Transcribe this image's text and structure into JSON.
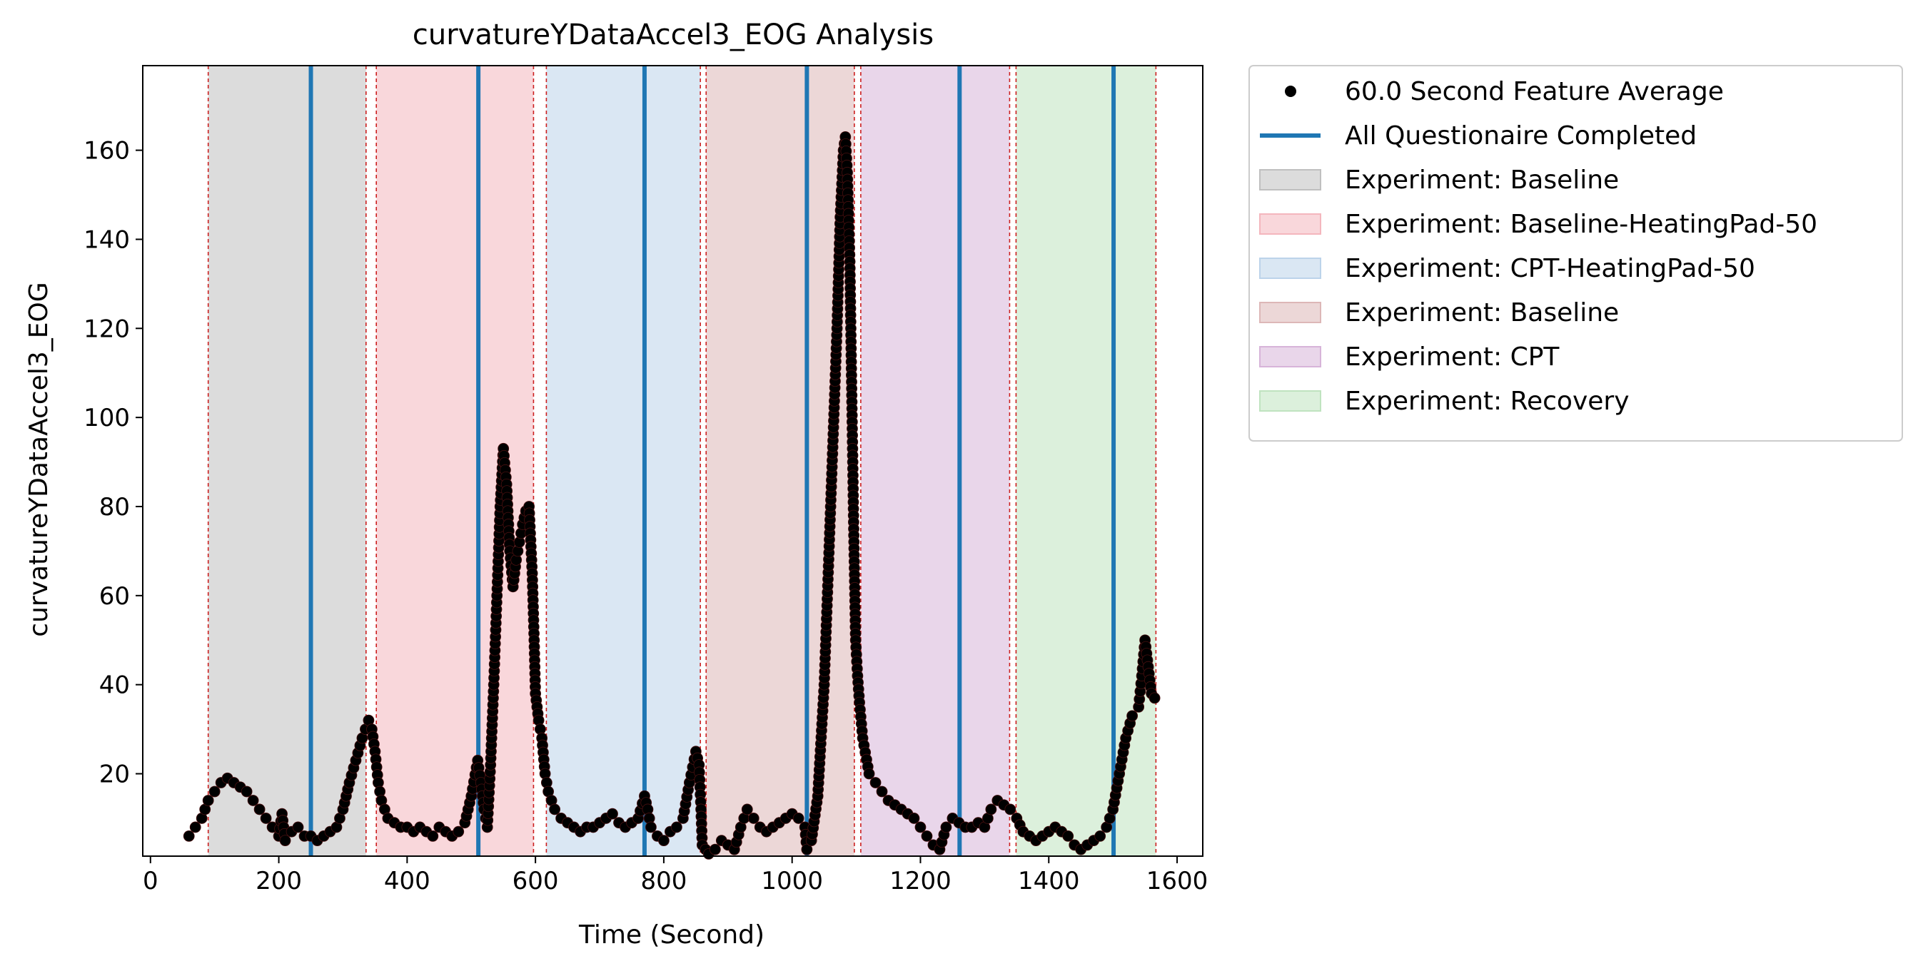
{
  "chart_data": {
    "type": "scatter",
    "title": "curvatureYDataAccel3_EOG Analysis",
    "xlabel": "Time (Second)",
    "ylabel": "curvatureYDataAccel3_EOG",
    "xlim": [
      -12,
      1640
    ],
    "ylim": [
      1.5,
      179
    ],
    "xticks": [
      0,
      200,
      400,
      600,
      800,
      1000,
      1200,
      1400,
      1600
    ],
    "yticks": [
      20,
      40,
      60,
      80,
      100,
      120,
      140,
      160
    ],
    "grid": false,
    "legend_position": "outside-top-right",
    "legend": [
      {
        "label": "60.0 Second Feature Average",
        "kind": "marker",
        "color": "#000000"
      },
      {
        "label": "All Questionaire Completed",
        "kind": "line",
        "color": "#1f77b4"
      },
      {
        "label": "Experiment: Baseline",
        "kind": "patch",
        "color": "#bfbfbf"
      },
      {
        "label": "Experiment: Baseline-HeatingPad-50",
        "kind": "patch",
        "color": "#f4b6bd"
      },
      {
        "label": "Experiment: CPT-HeatingPad-50",
        "kind": "patch",
        "color": "#bcd3ea"
      },
      {
        "label": "Experiment: Baseline",
        "kind": "patch",
        "color": "#ddb7b7"
      },
      {
        "label": "Experiment: CPT",
        "kind": "patch",
        "color": "#d7b4d9"
      },
      {
        "label": "Experiment: Recovery",
        "kind": "patch",
        "color": "#bfe3bf"
      }
    ],
    "experiment_regions": [
      {
        "name": "Experiment: Baseline",
        "start": 90,
        "end": 336,
        "color": "#bfbfbf"
      },
      {
        "name": "Experiment: Baseline-HeatingPad-50",
        "start": 352,
        "end": 597,
        "color": "#f4b6bd"
      },
      {
        "name": "Experiment: CPT-HeatingPad-50",
        "start": 617,
        "end": 857,
        "color": "#bcd3ea"
      },
      {
        "name": "Experiment: Baseline",
        "start": 866,
        "end": 1097,
        "color": "#ddb7b7"
      },
      {
        "name": "Experiment: CPT",
        "start": 1107,
        "end": 1339,
        "color": "#d7b4d9"
      },
      {
        "name": "Experiment: Recovery",
        "start": 1349,
        "end": 1567,
        "color": "#bfe3bf"
      }
    ],
    "questionnaire_completed_x": [
      250,
      511,
      770,
      1023,
      1261,
      1501
    ],
    "series": [
      {
        "name": "60.0 Second Feature Average",
        "color": "#000000",
        "points": [
          [
            60,
            6
          ],
          [
            70,
            8
          ],
          [
            80,
            10
          ],
          [
            90,
            14
          ],
          [
            100,
            16
          ],
          [
            110,
            18
          ],
          [
            120,
            19
          ],
          [
            130,
            18
          ],
          [
            140,
            17
          ],
          [
            150,
            16
          ],
          [
            160,
            14
          ],
          [
            170,
            12
          ],
          [
            180,
            10
          ],
          [
            190,
            8
          ],
          [
            200,
            6
          ],
          [
            205,
            11
          ],
          [
            210,
            5
          ],
          [
            220,
            7
          ],
          [
            230,
            8
          ],
          [
            240,
            6
          ],
          [
            250,
            6
          ],
          [
            260,
            5
          ],
          [
            270,
            6
          ],
          [
            280,
            7
          ],
          [
            290,
            8
          ],
          [
            300,
            12
          ],
          [
            310,
            18
          ],
          [
            320,
            23
          ],
          [
            330,
            28
          ],
          [
            340,
            32
          ],
          [
            345,
            30
          ],
          [
            350,
            25
          ],
          [
            355,
            18
          ],
          [
            360,
            14
          ],
          [
            370,
            10
          ],
          [
            380,
            9
          ],
          [
            390,
            8
          ],
          [
            400,
            8
          ],
          [
            410,
            7
          ],
          [
            420,
            8
          ],
          [
            430,
            7
          ],
          [
            440,
            6
          ],
          [
            450,
            8
          ],
          [
            460,
            7
          ],
          [
            470,
            6
          ],
          [
            480,
            7
          ],
          [
            490,
            9
          ],
          [
            500,
            15
          ],
          [
            510,
            23
          ],
          [
            515,
            18
          ],
          [
            520,
            12
          ],
          [
            525,
            8
          ],
          [
            530,
            22
          ],
          [
            535,
            40
          ],
          [
            540,
            60
          ],
          [
            545,
            80
          ],
          [
            550,
            93
          ],
          [
            555,
            85
          ],
          [
            560,
            70
          ],
          [
            565,
            62
          ],
          [
            570,
            68
          ],
          [
            575,
            72
          ],
          [
            580,
            76
          ],
          [
            585,
            79
          ],
          [
            590,
            80
          ],
          [
            595,
            65
          ],
          [
            598,
            50
          ],
          [
            600,
            38
          ],
          [
            605,
            32
          ],
          [
            610,
            28
          ],
          [
            615,
            20
          ],
          [
            620,
            16
          ],
          [
            630,
            12
          ],
          [
            640,
            10
          ],
          [
            650,
            9
          ],
          [
            660,
            8
          ],
          [
            670,
            7
          ],
          [
            680,
            8
          ],
          [
            690,
            8
          ],
          [
            700,
            9
          ],
          [
            710,
            10
          ],
          [
            720,
            11
          ],
          [
            730,
            9
          ],
          [
            740,
            8
          ],
          [
            750,
            9
          ],
          [
            760,
            10
          ],
          [
            770,
            15
          ],
          [
            775,
            12
          ],
          [
            780,
            8
          ],
          [
            790,
            6
          ],
          [
            800,
            5
          ],
          [
            810,
            7
          ],
          [
            820,
            8
          ],
          [
            830,
            10
          ],
          [
            840,
            18
          ],
          [
            850,
            25
          ],
          [
            855,
            22
          ],
          [
            858,
            12
          ],
          [
            860,
            4
          ],
          [
            865,
            3
          ],
          [
            870,
            2
          ],
          [
            880,
            3
          ],
          [
            890,
            5
          ],
          [
            900,
            4
          ],
          [
            910,
            3
          ],
          [
            920,
            8
          ],
          [
            930,
            12
          ],
          [
            940,
            10
          ],
          [
            950,
            8
          ],
          [
            960,
            7
          ],
          [
            970,
            8
          ],
          [
            980,
            9
          ],
          [
            990,
            10
          ],
          [
            1000,
            11
          ],
          [
            1010,
            10
          ],
          [
            1020,
            8
          ],
          [
            1023,
            3
          ],
          [
            1030,
            5
          ],
          [
            1040,
            15
          ],
          [
            1050,
            40
          ],
          [
            1060,
            80
          ],
          [
            1070,
            120
          ],
          [
            1075,
            145
          ],
          [
            1080,
            160
          ],
          [
            1083,
            163
          ],
          [
            1086,
            155
          ],
          [
            1090,
            135
          ],
          [
            1093,
            105
          ],
          [
            1096,
            75
          ],
          [
            1099,
            50
          ],
          [
            1102,
            42
          ],
          [
            1105,
            36
          ],
          [
            1110,
            28
          ],
          [
            1120,
            20
          ],
          [
            1130,
            18
          ],
          [
            1140,
            16
          ],
          [
            1150,
            14
          ],
          [
            1160,
            13
          ],
          [
            1170,
            12
          ],
          [
            1180,
            11
          ],
          [
            1190,
            10
          ],
          [
            1200,
            8
          ],
          [
            1210,
            6
          ],
          [
            1220,
            4
          ],
          [
            1230,
            3
          ],
          [
            1240,
            8
          ],
          [
            1250,
            10
          ],
          [
            1260,
            9
          ],
          [
            1270,
            8
          ],
          [
            1280,
            8
          ],
          [
            1290,
            9
          ],
          [
            1300,
            8
          ],
          [
            1310,
            12
          ],
          [
            1320,
            14
          ],
          [
            1330,
            13
          ],
          [
            1340,
            12
          ],
          [
            1350,
            10
          ],
          [
            1360,
            7
          ],
          [
            1370,
            6
          ],
          [
            1380,
            5
          ],
          [
            1390,
            6
          ],
          [
            1400,
            7
          ],
          [
            1410,
            8
          ],
          [
            1420,
            7
          ],
          [
            1430,
            6
          ],
          [
            1440,
            4
          ],
          [
            1450,
            3
          ],
          [
            1460,
            4
          ],
          [
            1470,
            5
          ],
          [
            1480,
            6
          ],
          [
            1490,
            8
          ],
          [
            1500,
            12
          ],
          [
            1510,
            20
          ],
          [
            1520,
            28
          ],
          [
            1530,
            33
          ],
          [
            1540,
            35
          ],
          [
            1545,
            42
          ],
          [
            1550,
            50
          ],
          [
            1555,
            44
          ],
          [
            1560,
            38
          ],
          [
            1565,
            37
          ]
        ]
      }
    ]
  }
}
